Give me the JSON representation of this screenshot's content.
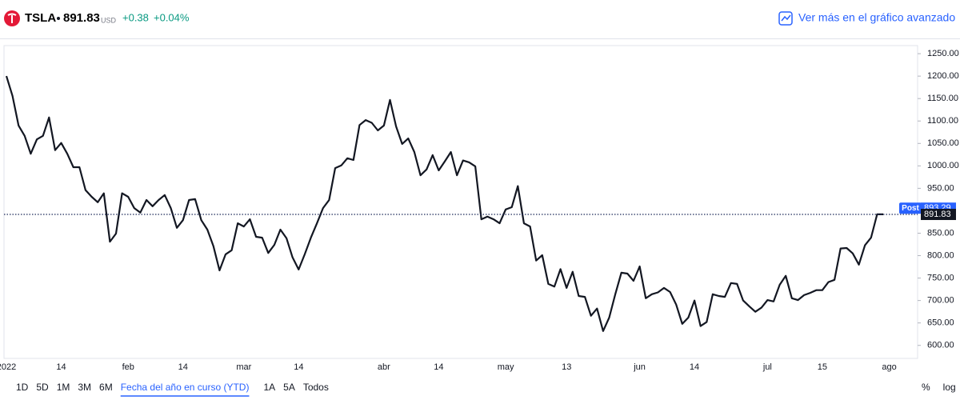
{
  "header": {
    "symbol": "TSLA",
    "price": "891.83",
    "currency": "USD",
    "change": "+0.38",
    "change_pct": "+0.04%",
    "link": "Ver más en el gráfico avanzado"
  },
  "chart_data": {
    "type": "line",
    "categories": [
      "2022",
      null,
      null,
      null,
      null,
      null,
      null,
      null,
      null,
      "14",
      null,
      null,
      null,
      null,
      null,
      null,
      null,
      null,
      null,
      null,
      "feb",
      null,
      null,
      null,
      null,
      null,
      null,
      null,
      null,
      "14",
      null,
      null,
      null,
      null,
      null,
      null,
      null,
      null,
      null,
      "mar",
      null,
      null,
      null,
      null,
      null,
      null,
      null,
      null,
      "14",
      null,
      null,
      null,
      null,
      null,
      null,
      null,
      null,
      null,
      null,
      null,
      null,
      null,
      "abr",
      null,
      null,
      null,
      null,
      null,
      null,
      null,
      null,
      "14",
      null,
      null,
      null,
      null,
      null,
      null,
      null,
      null,
      null,
      null,
      "may",
      null,
      null,
      null,
      null,
      null,
      null,
      null,
      null,
      null,
      "13",
      null,
      null,
      null,
      null,
      null,
      null,
      null,
      null,
      null,
      null,
      null,
      "jun",
      null,
      null,
      null,
      null,
      null,
      null,
      null,
      null,
      "14",
      null,
      null,
      null,
      null,
      null,
      null,
      null,
      null,
      null,
      null,
      null,
      "jul",
      null,
      null,
      null,
      null,
      null,
      null,
      null,
      null,
      "15",
      null,
      null,
      null,
      null,
      null,
      null,
      null,
      null,
      null,
      null,
      "ago"
    ],
    "series": [
      {
        "name": "TSLA",
        "color": "#131722",
        "values": [
          1200,
          1156,
          1090,
          1067,
          1027,
          1059,
          1067,
          1108,
          1035,
          1051,
          1027,
          997,
          997,
          946,
          931,
          919,
          939,
          831,
          849,
          939,
          931,
          906,
          896,
          924,
          910,
          924,
          935,
          906,
          862,
          879,
          924,
          926,
          879,
          858,
          821,
          767,
          803,
          812,
          872,
          865,
          881,
          842,
          840,
          806,
          824,
          858,
          839,
          796,
          769,
          803,
          840,
          872,
          906,
          924,
          995,
          1001,
          1017,
          1013,
          1091,
          1102,
          1096,
          1079,
          1090,
          1147,
          1088,
          1049,
          1061,
          1031,
          979,
          992,
          1024,
          990,
          1010,
          1031,
          979,
          1012,
          1008,
          999,
          881,
          887,
          881,
          872,
          903,
          908,
          955,
          872,
          865,
          789,
          801,
          737,
          731,
          770,
          728,
          764,
          710,
          708,
          666,
          682,
          632,
          662,
          714,
          762,
          760,
          744,
          776,
          705,
          714,
          718,
          728,
          719,
          691,
          648,
          662,
          700,
          643,
          652,
          714,
          710,
          708,
          739,
          737,
          700,
          687,
          675,
          684,
          701,
          698,
          735,
          755,
          705,
          701,
          712,
          717,
          723,
          723,
          741,
          746,
          816,
          817,
          805,
          780,
          823,
          840,
          892,
          892,
          null
        ]
      }
    ],
    "ylim": [
      571,
      1268
    ],
    "yticks": [
      {
        "value": 600,
        "label": "600.00"
      },
      {
        "value": 650,
        "label": "650.00"
      },
      {
        "value": 700,
        "label": "700.00"
      },
      {
        "value": 750,
        "label": "750.00"
      },
      {
        "value": 800,
        "label": "800.00"
      },
      {
        "value": 850,
        "label": "850.00"
      },
      {
        "value": 900,
        "label": "900.00"
      },
      {
        "value": 950,
        "label": "950.00"
      },
      {
        "value": 1000,
        "label": "1000.00"
      },
      {
        "value": 1050,
        "label": "1050.00"
      },
      {
        "value": 1100,
        "label": "1100.00"
      },
      {
        "value": 1150,
        "label": "1150.00"
      },
      {
        "value": 1200,
        "label": "1200.00"
      },
      {
        "value": 1250,
        "label": "1250.00"
      }
    ],
    "last_price": 891.83,
    "post_label": "Post",
    "post_price": 893.29,
    "grid": false
  },
  "range_buttons": [
    "1D",
    "5D",
    "1M",
    "3M",
    "6M",
    "Fecha del año en curso (YTD)",
    "1A",
    "5A",
    "Todos"
  ],
  "active_range": 5,
  "scale_buttons": [
    "%",
    "log"
  ]
}
